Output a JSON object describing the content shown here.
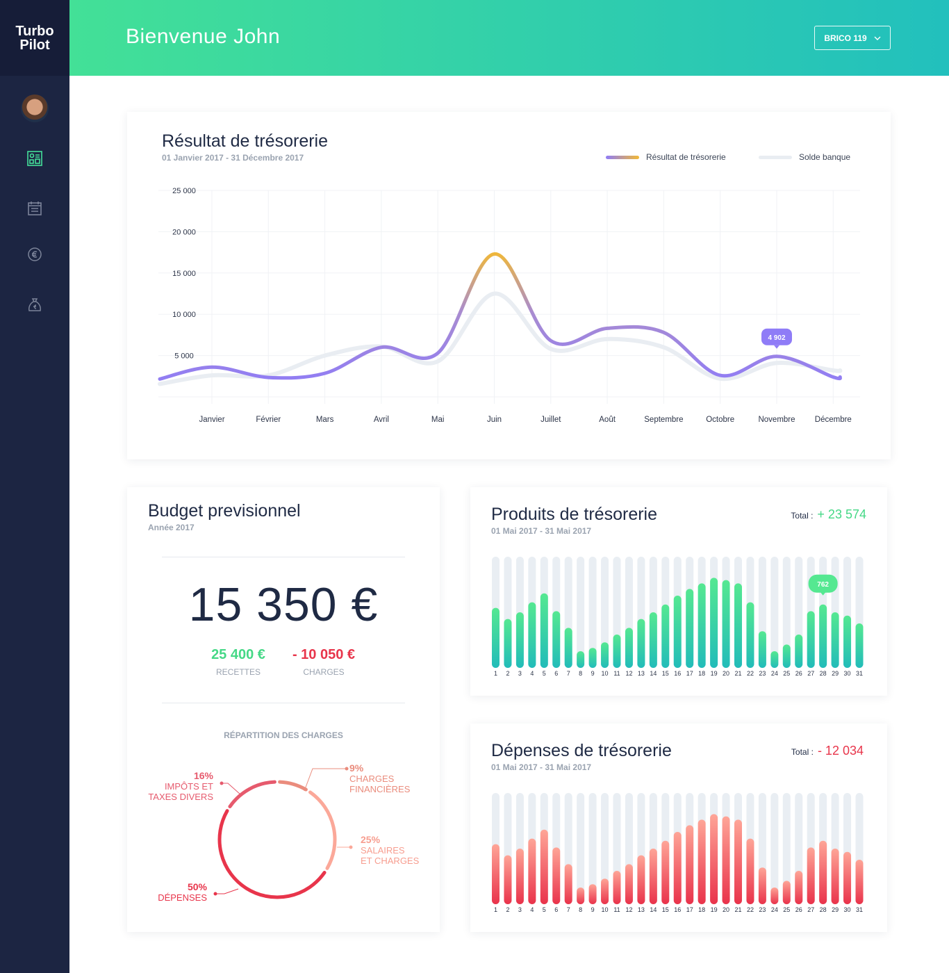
{
  "app": {
    "logo_line1": "Turbo",
    "logo_line2": "Pilot"
  },
  "sidebar": {
    "items": [
      {
        "icon": "dashboard-icon",
        "active": true
      },
      {
        "icon": "calendar-icon"
      },
      {
        "icon": "euro-coin-icon"
      },
      {
        "icon": "money-bag-icon"
      }
    ],
    "accent": "#45e09a"
  },
  "header": {
    "title": "Bienvenue John",
    "company": "BRICO 119"
  },
  "tresorerie": {
    "title": "Résultat de trésorerie",
    "subtitle": "01 Janvier 2017 - 31 Décembre 2017",
    "legend": [
      "Résultat de trésorerie",
      "Solde banque"
    ],
    "tooltip": "4 902"
  },
  "chart_data": [
    {
      "type": "line",
      "title": "Résultat de trésorerie",
      "categories": [
        "Janvier",
        "Février",
        "Mars",
        "Avril",
        "Mai",
        "Juin",
        "Juillet",
        "Août",
        "Septembre",
        "Octobre",
        "Novembre",
        "Décembre"
      ],
      "yticks": [
        "25 000",
        "20 000",
        "15 000",
        "10 000",
        "5 000"
      ],
      "ylim": [
        0,
        25000
      ],
      "grid": true,
      "legend": "top-right",
      "series": [
        {
          "name": "Résultat de trésorerie",
          "values": [
            3600,
            2350,
            2850,
            6000,
            5300,
            17300,
            6800,
            8300,
            7800,
            2600,
            4902,
            2400
          ],
          "colors": [
            "#8f7cf7",
            "#f2b935"
          ]
        },
        {
          "name": "Solde banque",
          "values": [
            2600,
            2600,
            5000,
            6100,
            4300,
            12500,
            5800,
            7000,
            6000,
            2200,
            4100,
            3200
          ],
          "color": "#e9edf2"
        }
      ]
    },
    {
      "type": "bar",
      "title": "Produits de trésorerie",
      "categories": [
        "1",
        "2",
        "3",
        "4",
        "5",
        "6",
        "7",
        "8",
        "9",
        "10",
        "11",
        "12",
        "13",
        "14",
        "15",
        "16",
        "17",
        "18",
        "19",
        "20",
        "21",
        "22",
        "23",
        "24",
        "25",
        "26",
        "27",
        "28",
        "29",
        "30",
        "31"
      ],
      "fill_fraction": [
        0.54,
        0.44,
        0.5,
        0.59,
        0.67,
        0.51,
        0.36,
        0.15,
        0.18,
        0.23,
        0.3,
        0.36,
        0.44,
        0.5,
        0.57,
        0.65,
        0.71,
        0.76,
        0.81,
        0.79,
        0.76,
        0.59,
        0.33,
        0.15,
        0.21,
        0.3,
        0.51,
        0.57,
        0.5,
        0.47,
        0.4
      ],
      "tooltip": {
        "day": "28",
        "value": "762"
      },
      "colors": [
        "#55e891",
        "#22bcb9"
      ]
    },
    {
      "type": "bar",
      "title": "Dépenses de trésorerie",
      "categories": [
        "1",
        "2",
        "3",
        "4",
        "5",
        "6",
        "7",
        "8",
        "9",
        "10",
        "11",
        "12",
        "13",
        "14",
        "15",
        "16",
        "17",
        "18",
        "19",
        "20",
        "21",
        "22",
        "23",
        "24",
        "25",
        "26",
        "27",
        "28",
        "29",
        "30",
        "31"
      ],
      "fill_fraction": [
        0.54,
        0.44,
        0.5,
        0.59,
        0.67,
        0.51,
        0.36,
        0.15,
        0.18,
        0.23,
        0.3,
        0.36,
        0.44,
        0.5,
        0.57,
        0.65,
        0.71,
        0.76,
        0.81,
        0.79,
        0.76,
        0.59,
        0.33,
        0.15,
        0.21,
        0.3,
        0.51,
        0.57,
        0.5,
        0.47,
        0.4
      ],
      "colors": [
        "#fea597",
        "#e9334b"
      ]
    },
    {
      "type": "pie",
      "title": "RÉPARTITION DES CHARGES",
      "slices": [
        {
          "pct": "9%",
          "label": [
            "CHARGES",
            "FINANCIÈRES"
          ],
          "value": 9,
          "color": "#ea8c7d"
        },
        {
          "pct": "25%",
          "label": [
            "SALAIRES",
            "ET CHARGES"
          ],
          "value": 25,
          "color": "#fba899"
        },
        {
          "pct": "50%",
          "label": [
            "DÉPENSES"
          ],
          "value": 50,
          "color": "#e8354b"
        },
        {
          "pct": "16%",
          "label": [
            "IMPÔTS ET",
            "TAXES DIVERS"
          ],
          "value": 16,
          "color": "#e65a6d"
        }
      ]
    }
  ],
  "budget": {
    "title": "Budget previsionnel",
    "subtitle": "Année 2017",
    "amount": "15 350 €",
    "recettes": {
      "value": "25 400 €",
      "label": "RECETTES",
      "color": "#45d886"
    },
    "charges": {
      "value": "- 10 050 €",
      "label": "CHARGES",
      "color": "#e8354b"
    },
    "repartition_title": "RÉPARTITION DES CHARGES"
  },
  "produits": {
    "title": "Produits de trésorerie",
    "subtitle": "01 Mai 2017 - 31 Mai 2017",
    "total_label": "Total :",
    "total": "+ 23 574",
    "color": "#45d886"
  },
  "depenses": {
    "title": "Dépenses de trésorerie",
    "subtitle": "01 Mai 2017 - 31 Mai 2017",
    "total_label": "Total :",
    "total": "- 12 034",
    "color": "#e8354b"
  }
}
